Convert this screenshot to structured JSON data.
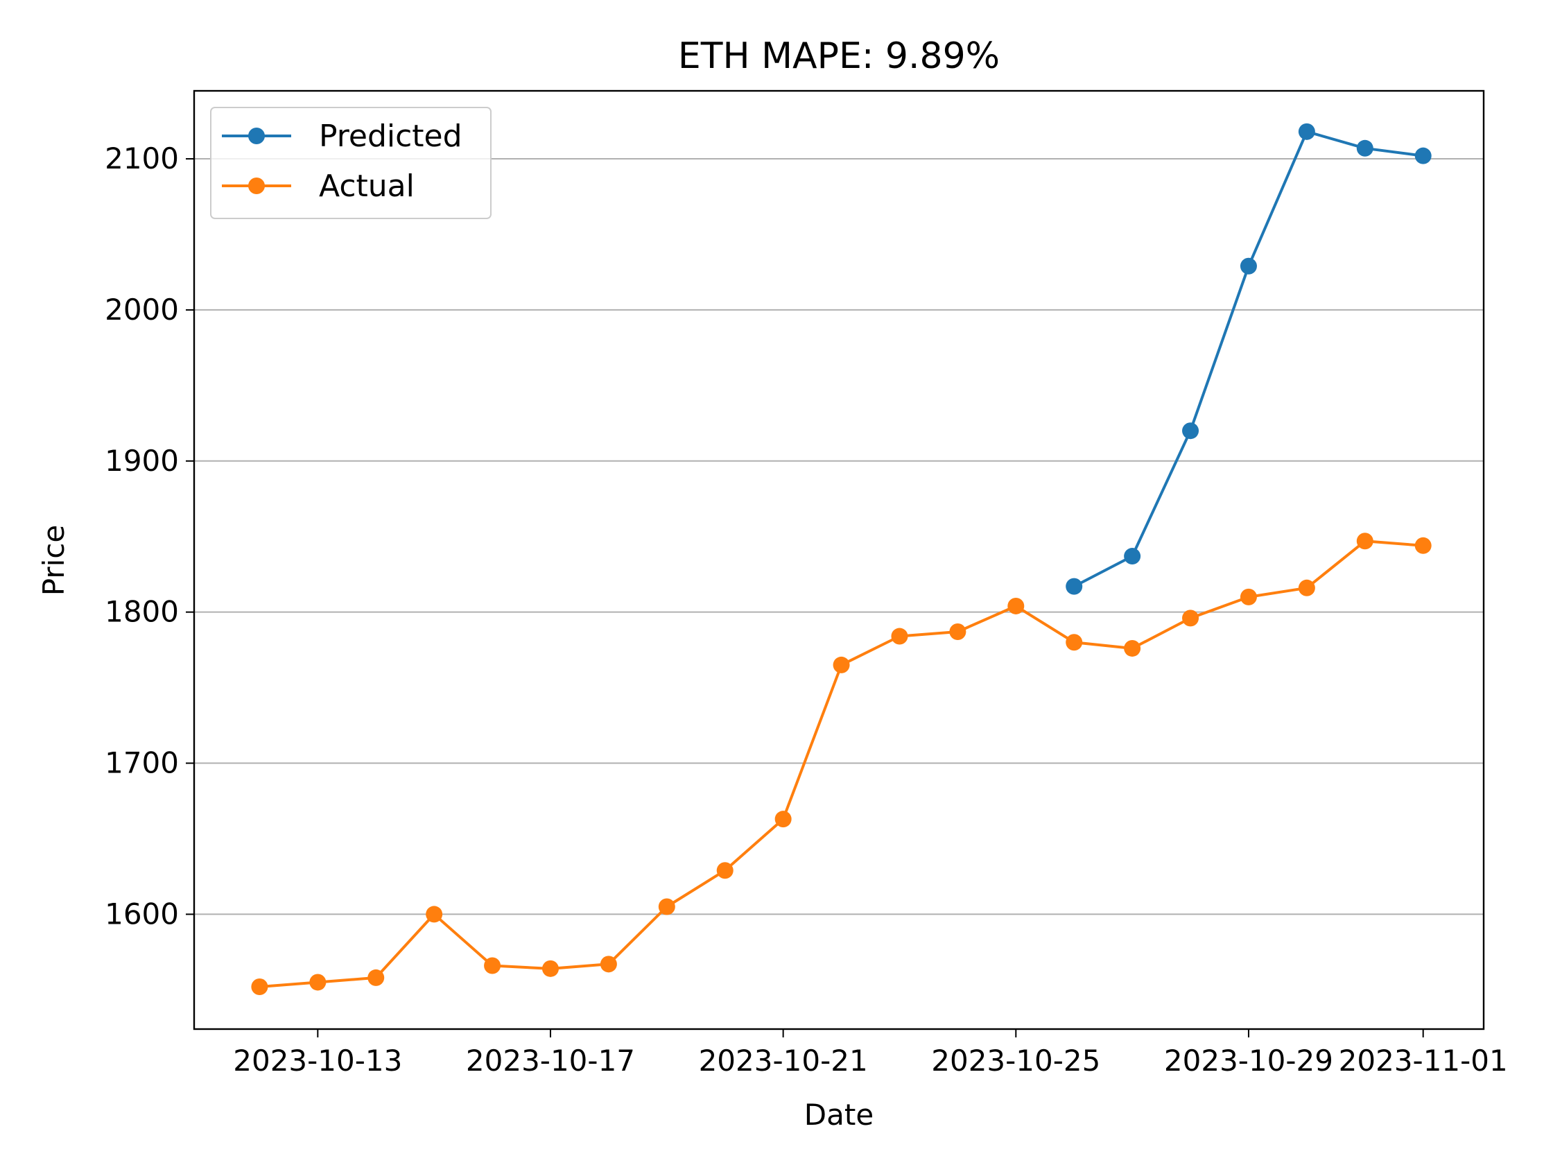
{
  "chart_data": {
    "type": "line",
    "title": "ETH MAPE: 9.89%",
    "xlabel": "Date",
    "ylabel": "Price",
    "x_ticks": [
      "2023-10-13",
      "2023-10-17",
      "2023-10-21",
      "2023-10-25",
      "2023-10-29",
      "2023-11-01"
    ],
    "y_ticks": [
      1600,
      1700,
      1800,
      1900,
      2000,
      2100
    ],
    "xlim": [
      "2023-10-10T21:00",
      "2023-11-02T00:58"
    ],
    "ylim": [
      1524,
      2145
    ],
    "grid": "horizontal",
    "legend_position": "top-left",
    "series": [
      {
        "name": "Predicted",
        "color": "#1f77b4",
        "x": [
          "2023-10-26",
          "2023-10-27",
          "2023-10-28",
          "2023-10-29",
          "2023-10-30",
          "2023-10-31",
          "2023-11-01"
        ],
        "values": [
          1817,
          1837,
          1920,
          2029,
          2118,
          2107,
          2102
        ]
      },
      {
        "name": "Actual",
        "color": "#ff7f0e",
        "x": [
          "2023-10-12",
          "2023-10-13",
          "2023-10-14",
          "2023-10-15",
          "2023-10-16",
          "2023-10-17",
          "2023-10-18",
          "2023-10-19",
          "2023-10-20",
          "2023-10-21",
          "2023-10-22",
          "2023-10-23",
          "2023-10-24",
          "2023-10-25",
          "2023-10-26",
          "2023-10-27",
          "2023-10-28",
          "2023-10-29",
          "2023-10-30",
          "2023-10-31",
          "2023-11-01"
        ],
        "values": [
          1552,
          1555,
          1558,
          1600,
          1566,
          1564,
          1567,
          1605,
          1629,
          1663,
          1765,
          1784,
          1787,
          1804,
          1780,
          1776,
          1796,
          1810,
          1816,
          1847,
          1844
        ]
      }
    ]
  }
}
